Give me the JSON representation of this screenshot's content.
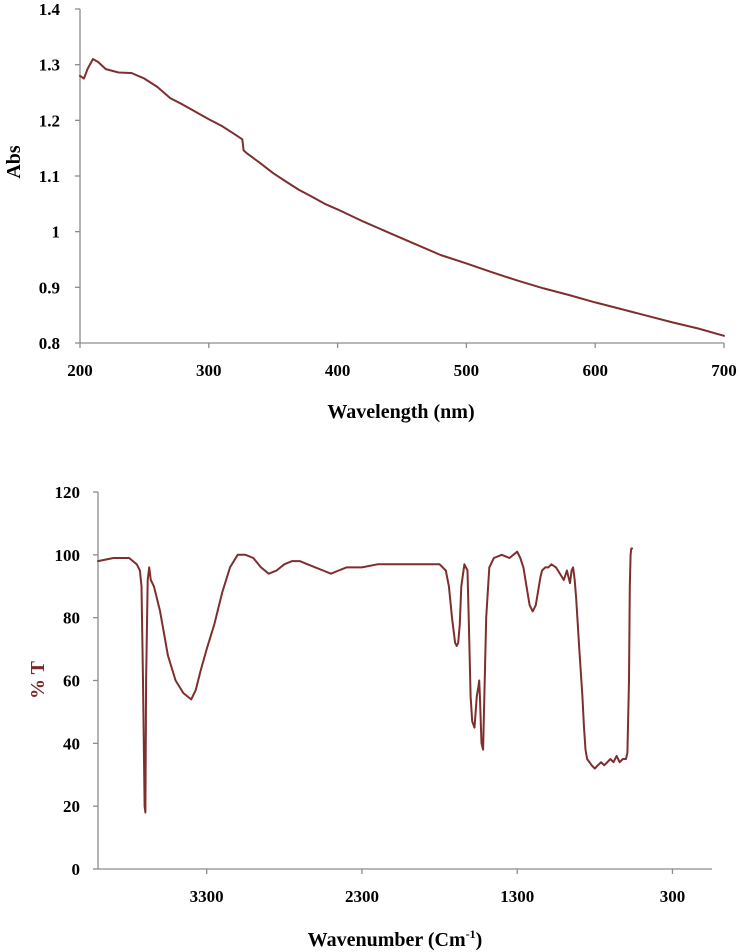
{
  "colors": {
    "series": "#7f2e2e",
    "axis": "#8c8c8c",
    "ftir_ylabel": "#7a2a2a"
  },
  "chart_data": [
    {
      "type": "line",
      "title": "",
      "xlabel": "Wavelength (nm)",
      "ylabel": "Abs",
      "xlim": [
        200,
        700
      ],
      "ylim": [
        0.8,
        1.4
      ],
      "xticks": [
        "200",
        "300",
        "400",
        "500",
        "600",
        "700"
      ],
      "yticks": [
        "0.8",
        "0.9",
        "1",
        "1.1",
        "1.2",
        "1.3",
        "1.4"
      ],
      "grid": false,
      "legend": "none",
      "series": [
        {
          "x": [
            200,
            203,
            206,
            210,
            214,
            220,
            230,
            240,
            250,
            260,
            270,
            280,
            290,
            300,
            310,
            320,
            326,
            327,
            330,
            340,
            350,
            360,
            370,
            380,
            390,
            400,
            420,
            440,
            460,
            480,
            500,
            520,
            540,
            560,
            580,
            600,
            620,
            640,
            660,
            680,
            700
          ],
          "y": [
            1.28,
            1.275,
            1.293,
            1.31,
            1.305,
            1.292,
            1.286,
            1.285,
            1.275,
            1.26,
            1.24,
            1.228,
            1.215,
            1.202,
            1.19,
            1.175,
            1.166,
            1.146,
            1.14,
            1.123,
            1.105,
            1.09,
            1.075,
            1.063,
            1.05,
            1.04,
            1.018,
            0.998,
            0.978,
            0.958,
            0.943,
            0.927,
            0.912,
            0.898,
            0.886,
            0.873,
            0.861,
            0.849,
            0.837,
            0.826,
            0.813
          ]
        }
      ]
    },
    {
      "type": "line",
      "title": "",
      "xlabel": "Wavenumber (Cm",
      "xlabel_superscript": "-1",
      "xlabel_suffix": ")",
      "ylabel": "% T",
      "xlim": [
        4000,
        200
      ],
      "x_reversed": true,
      "ylim": [
        0,
        120
      ],
      "xticks": [
        "3300",
        "2300",
        "1300",
        "300"
      ],
      "yticks": [
        "0",
        "20",
        "40",
        "60",
        "80",
        "100",
        "120"
      ],
      "grid": false,
      "legend": "none",
      "series": [
        {
          "x": [
            4000,
            3900,
            3800,
            3750,
            3730,
            3720,
            3710,
            3700,
            3695,
            3690,
            3680,
            3670,
            3660,
            3640,
            3600,
            3550,
            3500,
            3450,
            3400,
            3370,
            3340,
            3300,
            3250,
            3200,
            3150,
            3100,
            3050,
            3000,
            2950,
            2900,
            2850,
            2800,
            2750,
            2700,
            2650,
            2600,
            2550,
            2500,
            2450,
            2400,
            2350,
            2300,
            2200,
            2100,
            2000,
            1900,
            1800,
            1760,
            1740,
            1720,
            1700,
            1690,
            1680,
            1670,
            1660,
            1640,
            1620,
            1610,
            1600,
            1590,
            1575,
            1560,
            1550,
            1545,
            1540,
            1530,
            1520,
            1500,
            1480,
            1450,
            1400,
            1350,
            1300,
            1280,
            1260,
            1240,
            1220,
            1200,
            1180,
            1160,
            1150,
            1140,
            1120,
            1100,
            1080,
            1050,
            1000,
            980,
            970,
            960,
            950,
            940,
            930,
            920,
            900,
            880,
            870,
            860,
            850,
            820,
            800,
            780,
            760,
            740,
            720,
            700,
            680,
            660,
            640,
            620,
            600,
            590,
            580,
            575,
            570,
            565,
            560
          ],
          "y": [
            98,
            99,
            99,
            97,
            95,
            90,
            60,
            20,
            18,
            60,
            92,
            96,
            92,
            90,
            82,
            68,
            60,
            56,
            54,
            57,
            63,
            70,
            78,
            88,
            96,
            100,
            100,
            99,
            96,
            94,
            95,
            97,
            98,
            98,
            97,
            96,
            95,
            94,
            95,
            96,
            96,
            96,
            97,
            97,
            97,
            97,
            97,
            95,
            90,
            80,
            72,
            71,
            72,
            78,
            90,
            97,
            95,
            75,
            55,
            47,
            45,
            55,
            58,
            60,
            55,
            40,
            38,
            80,
            96,
            99,
            100,
            99,
            101,
            99,
            96,
            90,
            84,
            82,
            84,
            90,
            93,
            95,
            96,
            96,
            97,
            96,
            92,
            95,
            93,
            91,
            95,
            96,
            92,
            86,
            70,
            55,
            45,
            38,
            35,
            33,
            32,
            33,
            34,
            33,
            34,
            35,
            34,
            36,
            34,
            35,
            35,
            37,
            60,
            90,
            100,
            102,
            102
          ]
        }
      ]
    }
  ]
}
